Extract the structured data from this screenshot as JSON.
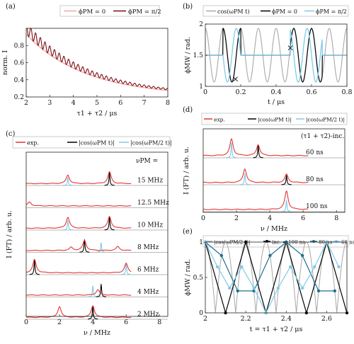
{
  "chart_data": [
    {
      "id": "a",
      "panel_label": "(a)",
      "type": "line",
      "ylabel": "norm. I",
      "xlabel": "τ1 + τ2 / μs",
      "xlim": [
        2,
        8
      ],
      "ylim": [
        0.2,
        1.0
      ],
      "xticks": [
        "2",
        "3",
        "4",
        "5",
        "6",
        "7",
        "8"
      ],
      "yticks": [
        "0.2",
        "0.4",
        "0.6",
        "0.8"
      ],
      "legend": [
        "ϕPM = 0",
        "ϕPM = π/2"
      ],
      "legend_position": "top-center",
      "series": [
        {
          "name": "ϕPM = 0",
          "color": "#f4a7a7",
          "decay": {
            "start": 0.93,
            "end": 0.21,
            "x0": 2,
            "x1": 8,
            "rate": 0.42
          },
          "sample_points": [
            [
              2,
              0.93
            ],
            [
              3,
              0.62
            ],
            [
              4,
              0.43
            ],
            [
              5,
              0.33
            ],
            [
              6,
              0.27
            ],
            [
              7,
              0.23
            ],
            [
              8,
              0.21
            ]
          ]
        },
        {
          "name": "ϕPM = π/2",
          "color": "#7a0f15",
          "decay": {
            "start": 1.0,
            "end": 0.22,
            "x0": 2,
            "x1": 8,
            "rate": 0.42
          },
          "modulation": {
            "amplitude": 0.07,
            "period_us": 0.2
          },
          "sample_points": [
            [
              2.0,
              0.93
            ],
            [
              2.1,
              1.0
            ],
            [
              2.3,
              0.95
            ],
            [
              2.6,
              0.82
            ],
            [
              3.0,
              0.72
            ],
            [
              3.5,
              0.55
            ],
            [
              4.0,
              0.46
            ],
            [
              5.0,
              0.35
            ],
            [
              6.0,
              0.29
            ],
            [
              7.0,
              0.25
            ],
            [
              8.0,
              0.22
            ]
          ]
        }
      ]
    },
    {
      "id": "b",
      "panel_label": "(b)",
      "type": "line",
      "ylabel": "ϕMW / rad.",
      "xlabel": "t / μs",
      "xlim": [
        0,
        0.8
      ],
      "ylim": [
        1.0,
        2.0
      ],
      "xticks": [
        "0",
        "0.2",
        "0.4",
        "0.6",
        "0.8"
      ],
      "yticks": [
        "1",
        "1.5",
        "2"
      ],
      "legend": [
        "cos(ωPM t)",
        "ϕPM = 0",
        "ϕPM = π/2"
      ],
      "series": [
        {
          "name": "cos(ωPM t)",
          "color": "#a8a8a8",
          "center": 1.5,
          "amplitude": 0.43,
          "period_us": 0.1,
          "phase": 0
        },
        {
          "name": "ϕPM = 0",
          "color": "#000000",
          "center": 1.5,
          "amplitude": 0.43,
          "period_us": 0.1,
          "windows": [
            [
              0.1,
              0.2
            ],
            [
              0.48,
              0.66
            ]
          ]
        },
        {
          "name": "ϕPM = π/2",
          "color": "#7ccbe8",
          "center": 1.5,
          "amplitude": 0.43,
          "period_us": 0.1,
          "phase": 1.5708,
          "windows": [
            [
              0.1,
              0.2
            ],
            [
              0.48,
              0.66
            ]
          ]
        }
      ],
      "markers": [
        {
          "x": 0.17,
          "y": 1.12,
          "symbol": "×"
        },
        {
          "x": 0.48,
          "y": 1.62,
          "symbol": "×"
        }
      ]
    },
    {
      "id": "c",
      "panel_label": "(c)",
      "type": "line",
      "ylabel": "I (FT) / arb. u.",
      "xlabel": "ν / MHz",
      "xlim": [
        0,
        8.5
      ],
      "xticks": [
        "0",
        "2",
        "4",
        "6",
        "8"
      ],
      "legend": [
        "exp.",
        "|cos(ωPM t)|",
        "|cos(ωPM/2 t)|"
      ],
      "legend_colors": [
        "#e63333",
        "#000000",
        "#7ccbe8"
      ],
      "header": "νPM =",
      "rows": [
        {
          "label": "15 MHz",
          "peaks": [
            {
              "x": 2.5,
              "h": 0.55,
              "c": "exp"
            },
            {
              "x": 2.5,
              "h": 0.5,
              "c": "cyan"
            },
            {
              "x": 5.0,
              "h": 0.75,
              "c": "exp"
            },
            {
              "x": 5.0,
              "h": 0.8,
              "c": "black"
            }
          ]
        },
        {
          "label": "12.5 MHz",
          "peaks": [
            {
              "x": 0.2,
              "h": 0.25,
              "c": "exp"
            }
          ]
        },
        {
          "label": "10 MHz",
          "peaks": [
            {
              "x": 2.5,
              "h": 0.7,
              "c": "exp"
            },
            {
              "x": 2.5,
              "h": 0.6,
              "c": "cyan"
            },
            {
              "x": 5.0,
              "h": 0.75,
              "c": "exp"
            },
            {
              "x": 5.0,
              "h": 0.8,
              "c": "black"
            }
          ]
        },
        {
          "label": "8 MHz",
          "peaks": [
            {
              "x": 3.5,
              "h": 0.65,
              "c": "exp"
            },
            {
              "x": 3.5,
              "h": 0.8,
              "c": "black"
            },
            {
              "x": 4.5,
              "h": 0.6,
              "c": "cyan"
            },
            {
              "x": 2.7,
              "h": 0.2,
              "c": "exp"
            },
            {
              "x": 5.5,
              "h": 0.25,
              "c": "exp"
            }
          ]
        },
        {
          "label": "6 MHz",
          "peaks": [
            {
              "x": 0.5,
              "h": 0.85,
              "c": "exp"
            },
            {
              "x": 0.5,
              "h": 0.9,
              "c": "black"
            },
            {
              "x": 6.0,
              "h": 0.6,
              "c": "exp"
            },
            {
              "x": 6.0,
              "h": 0.7,
              "c": "cyan"
            }
          ]
        },
        {
          "label": "4 MHz",
          "peaks": [
            {
              "x": 4.0,
              "h": 0.7,
              "c": "cyan"
            },
            {
              "x": 4.5,
              "h": 0.8,
              "c": "black"
            },
            {
              "x": 4.3,
              "h": 0.35,
              "c": "exp"
            }
          ]
        },
        {
          "label": "2 MHz",
          "peaks": [
            {
              "x": 2.0,
              "h": 0.7,
              "c": "exp"
            },
            {
              "x": 4.0,
              "h": 0.75,
              "c": "exp"
            },
            {
              "x": 4.0,
              "h": 0.8,
              "c": "black"
            }
          ]
        }
      ]
    },
    {
      "id": "d",
      "panel_label": "(d)",
      "type": "line",
      "ylabel": "I (FT) / arb. u.",
      "xlabel": "ν / MHz",
      "xlim": [
        0,
        8.5
      ],
      "xticks": [
        "0",
        "2",
        "4",
        "6",
        "8"
      ],
      "legend": [
        "exp.",
        "|cos(ωPM t)|",
        "|cos(ωPM/2 t)|"
      ],
      "legend_colors": [
        "#e63333",
        "#000000",
        "#7ccbe8"
      ],
      "header": "(τ1 + τ2)-inc.",
      "rows": [
        {
          "label": "60 ns",
          "peaks": [
            {
              "x": 1.7,
              "h": 0.9,
              "c": "exp"
            },
            {
              "x": 1.7,
              "h": 0.8,
              "c": "cyan"
            },
            {
              "x": 3.3,
              "h": 0.6,
              "c": "exp"
            },
            {
              "x": 3.3,
              "h": 0.65,
              "c": "black"
            }
          ]
        },
        {
          "label": "80 ns",
          "peaks": [
            {
              "x": 2.5,
              "h": 0.75,
              "c": "exp"
            },
            {
              "x": 2.5,
              "h": 0.6,
              "c": "cyan"
            },
            {
              "x": 5.0,
              "h": 0.45,
              "c": "exp"
            },
            {
              "x": 5.0,
              "h": 0.5,
              "c": "black"
            }
          ]
        },
        {
          "label": "100 ns",
          "peaks": [
            {
              "x": 5.0,
              "h": 1.0,
              "c": "exp"
            },
            {
              "x": 5.0,
              "h": 0.6,
              "c": "cyan"
            }
          ]
        }
      ]
    },
    {
      "id": "e",
      "panel_label": "(e)",
      "type": "line",
      "ylabel": "ϕMW / rad.",
      "xlabel": "t = τ1 + τ2 / μs",
      "xlim": [
        2,
        2.7
      ],
      "ylim": [
        0,
        1
      ],
      "xticks": [
        "2",
        "2.2",
        "2.4",
        "2.6"
      ],
      "yticks": [
        "0",
        "0.5",
        "1"
      ],
      "legend": [
        "|cos(ωPM/2 t)|",
        "inc. = 100 ns",
        "80 ns",
        "60 ns"
      ],
      "series": [
        {
          "name": "|cos(ωPM/2 t)|",
          "color": "#a8a8a8",
          "period_us": 0.1
        },
        {
          "name": "inc. = 100 ns",
          "color": "#000000",
          "x": [
            2.0,
            2.1,
            2.2,
            2.3,
            2.4,
            2.5,
            2.6,
            2.7
          ],
          "y": [
            1,
            0,
            1,
            0,
            1,
            0,
            1,
            0
          ]
        },
        {
          "name": "80 ns",
          "color": "#1f6f8f",
          "x": [
            2.0,
            2.08,
            2.16,
            2.24,
            2.32,
            2.4,
            2.48,
            2.56,
            2.64
          ],
          "y": [
            1,
            0.81,
            0.31,
            0.31,
            0.81,
            1,
            0.81,
            0.31,
            0.31
          ]
        },
        {
          "name": "60 ns",
          "color": "#7ccbe8",
          "x": [
            2.0,
            2.06,
            2.12,
            2.18,
            2.24,
            2.3,
            2.36,
            2.42,
            2.48,
            2.54,
            2.6,
            2.66
          ],
          "y": [
            1,
            0.65,
            0.35,
            0.65,
            0.35,
            0,
            0.35,
            0.65,
            0.35,
            0.65,
            1,
            0.65
          ]
        }
      ]
    }
  ]
}
